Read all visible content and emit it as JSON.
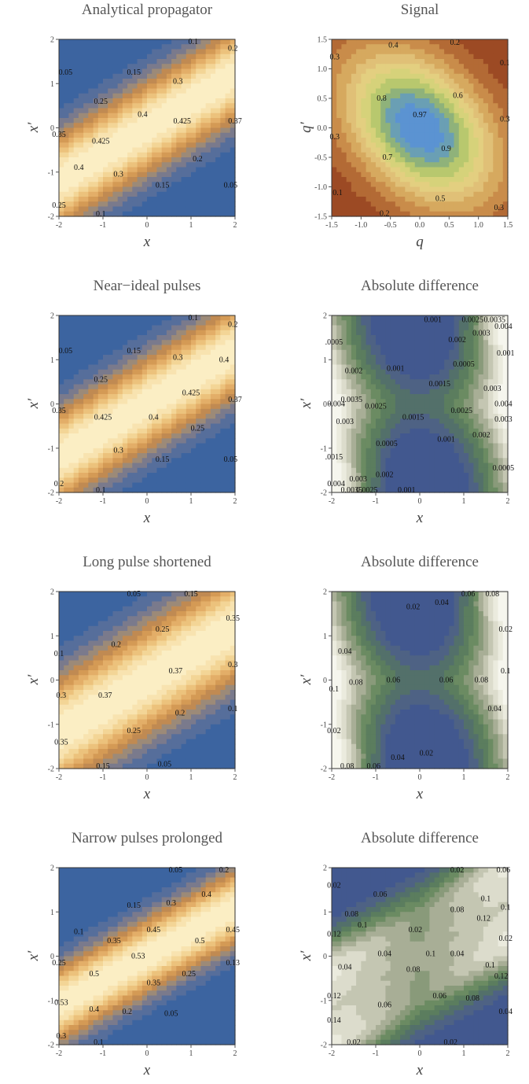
{
  "chart_data": [
    {
      "type": "contour",
      "palette": "warm",
      "title": "Analytical propagator",
      "xlabel": "x",
      "ylabel": "x′",
      "xlim": [
        -2,
        2
      ],
      "ylim": [
        -2,
        2
      ],
      "xticks": [
        "-2",
        "-1",
        "0",
        "1",
        "2"
      ],
      "yticks": [
        "-2",
        "-1",
        "0",
        "1",
        "2"
      ],
      "contour_labels": [
        {
          "text": "0.1",
          "x": 1.05,
          "y": 1.95
        },
        {
          "text": "0.2",
          "x": 1.95,
          "y": 1.8
        },
        {
          "text": "0.05",
          "x": -1.85,
          "y": 1.25
        },
        {
          "text": "0.15",
          "x": -0.3,
          "y": 1.25
        },
        {
          "text": "0.3",
          "x": 0.7,
          "y": 1.05
        },
        {
          "text": "0.25",
          "x": -1.05,
          "y": 0.6
        },
        {
          "text": "0.4",
          "x": -0.1,
          "y": 0.3
        },
        {
          "text": "0.425",
          "x": 0.8,
          "y": 0.15
        },
        {
          "text": "0.35",
          "x": -2.0,
          "y": -0.15
        },
        {
          "text": "0.425",
          "x": -1.05,
          "y": -0.3
        },
        {
          "text": "0.37",
          "x": 2.0,
          "y": 0.15
        },
        {
          "text": "0.4",
          "x": -1.55,
          "y": -0.9
        },
        {
          "text": "0.3",
          "x": -0.65,
          "y": -1.05
        },
        {
          "text": "0.2",
          "x": 1.15,
          "y": -0.7
        },
        {
          "text": "0.15",
          "x": 0.35,
          "y": -1.3
        },
        {
          "text": "0.05",
          "x": 1.9,
          "y": -1.3
        },
        {
          "text": "0.25",
          "x": -2.0,
          "y": -1.75
        },
        {
          "text": "0.1",
          "x": -1.05,
          "y": -1.95
        }
      ]
    },
    {
      "type": "contour",
      "palette": "signal",
      "title": "Signal",
      "xlabel": "q",
      "ylabel": "q′",
      "xlim": [
        -1.5,
        1.5
      ],
      "ylim": [
        -1.5,
        1.5
      ],
      "xticks": [
        "-1.5",
        "-1.0",
        "-0.5",
        "0.0",
        "0.5",
        "1.0",
        "1.5"
      ],
      "yticks": [
        "-1.5",
        "-1.0",
        "-0.5",
        "0.0",
        "0.5",
        "1.0",
        "1.5"
      ],
      "contour_labels": [
        {
          "text": "0.4",
          "x": -0.45,
          "y": 1.4
        },
        {
          "text": "0.2",
          "x": 0.6,
          "y": 1.45
        },
        {
          "text": "0.3",
          "x": -1.45,
          "y": 1.2
        },
        {
          "text": "0.1",
          "x": 1.45,
          "y": 1.1
        },
        {
          "text": "0.8",
          "x": -0.65,
          "y": 0.5
        },
        {
          "text": "0.6",
          "x": 0.65,
          "y": 0.55
        },
        {
          "text": "0.97",
          "x": 0.0,
          "y": 0.22
        },
        {
          "text": "0.3",
          "x": 1.45,
          "y": 0.15
        },
        {
          "text": "0.3",
          "x": -1.45,
          "y": -0.15
        },
        {
          "text": "0.9",
          "x": 0.45,
          "y": -0.35
        },
        {
          "text": "0.7",
          "x": -0.55,
          "y": -0.5
        },
        {
          "text": "0.5",
          "x": 0.35,
          "y": -1.2
        },
        {
          "text": "0.1",
          "x": -1.4,
          "y": -1.1
        },
        {
          "text": "0.2",
          "x": -0.6,
          "y": -1.45
        },
        {
          "text": "0.3",
          "x": 1.35,
          "y": -1.35
        }
      ]
    },
    {
      "type": "contour",
      "palette": "warm",
      "title": "Near−ideal pulses",
      "xlabel": "x",
      "ylabel": "x′",
      "xlim": [
        -2,
        2
      ],
      "ylim": [
        -2,
        2
      ],
      "xticks": [
        "-2",
        "-1",
        "0",
        "1",
        "2"
      ],
      "yticks": [
        "-2",
        "-1",
        "0",
        "1",
        "2"
      ],
      "contour_labels": [
        {
          "text": "0.1",
          "x": 1.05,
          "y": 1.95
        },
        {
          "text": "0.2",
          "x": 1.95,
          "y": 1.8
        },
        {
          "text": "0.05",
          "x": -1.85,
          "y": 1.2
        },
        {
          "text": "0.15",
          "x": -0.3,
          "y": 1.2
        },
        {
          "text": "0.3",
          "x": 0.7,
          "y": 1.05
        },
        {
          "text": "0.4",
          "x": 1.75,
          "y": 1.0
        },
        {
          "text": "0.25",
          "x": -1.05,
          "y": 0.55
        },
        {
          "text": "0.425",
          "x": 1.0,
          "y": 0.25
        },
        {
          "text": "0.35",
          "x": -2.0,
          "y": -0.15
        },
        {
          "text": "0.425",
          "x": -1.0,
          "y": -0.3
        },
        {
          "text": "0.37",
          "x": 2.0,
          "y": 0.1
        },
        {
          "text": "0.4",
          "x": 0.15,
          "y": -0.3
        },
        {
          "text": "0.25",
          "x": 1.15,
          "y": -0.55
        },
        {
          "text": "0.3",
          "x": -0.65,
          "y": -1.05
        },
        {
          "text": "0.15",
          "x": 0.35,
          "y": -1.25
        },
        {
          "text": "0.05",
          "x": 1.9,
          "y": -1.25
        },
        {
          "text": "0.2",
          "x": -2.0,
          "y": -1.8
        },
        {
          "text": "0.1",
          "x": -1.05,
          "y": -1.95
        }
      ]
    },
    {
      "type": "contour",
      "palette": "green",
      "title": "Absolute difference",
      "xlabel": "x",
      "ylabel": "x′",
      "xlim": [
        -2,
        2
      ],
      "ylim": [
        -2,
        2
      ],
      "xticks": [
        "-2",
        "-1",
        "0",
        "1",
        "2"
      ],
      "yticks": [
        "-2",
        "-1",
        "0",
        "1",
        "2"
      ],
      "contour_labels": [
        {
          "text": "0.001",
          "x": 0.3,
          "y": 1.9
        },
        {
          "text": "0.0025",
          "x": 1.2,
          "y": 1.9
        },
        {
          "text": "0.0035",
          "x": 1.7,
          "y": 1.9
        },
        {
          "text": "0.004",
          "x": 1.9,
          "y": 1.75
        },
        {
          "text": "0.003",
          "x": 1.4,
          "y": 1.6
        },
        {
          "text": "0.002",
          "x": 0.85,
          "y": 1.45
        },
        {
          "text": ".0005",
          "x": -1.95,
          "y": 1.4
        },
        {
          "text": "0.001",
          "x": 1.95,
          "y": 1.15
        },
        {
          "text": "0.002",
          "x": -1.5,
          "y": 0.75
        },
        {
          "text": "0.001",
          "x": -0.55,
          "y": 0.8
        },
        {
          "text": "0.0005",
          "x": 1.0,
          "y": 0.9
        },
        {
          "text": "0.0015",
          "x": 0.45,
          "y": 0.45
        },
        {
          "text": "0.003",
          "x": 1.65,
          "y": 0.35
        },
        {
          "text": "0.0035",
          "x": -1.55,
          "y": 0.1
        },
        {
          "text": "0.004",
          "x": -1.9,
          "y": 0.0
        },
        {
          "text": "0.0025",
          "x": -1.0,
          "y": -0.05
        },
        {
          "text": "0.0025",
          "x": 0.95,
          "y": -0.15
        },
        {
          "text": "0.004",
          "x": 1.9,
          "y": 0.0
        },
        {
          "text": "0.003",
          "x": -1.7,
          "y": -0.4
        },
        {
          "text": "0.0015",
          "x": -0.15,
          "y": -0.3
        },
        {
          "text": "0.003",
          "x": 1.9,
          "y": -0.35
        },
        {
          "text": "0.002",
          "x": 1.4,
          "y": -0.7
        },
        {
          "text": "0.001",
          "x": 0.6,
          "y": -0.8
        },
        {
          "text": "0.0005",
          "x": -0.75,
          "y": -0.9
        },
        {
          "text": ".0015",
          "x": -1.95,
          "y": -1.2
        },
        {
          "text": "0.0005",
          "x": 1.9,
          "y": -1.45
        },
        {
          "text": "0.002",
          "x": -0.8,
          "y": -1.6
        },
        {
          "text": "0.003",
          "x": -1.4,
          "y": -1.7
        },
        {
          "text": "0.004",
          "x": -1.9,
          "y": -1.8
        },
        {
          "text": "0.0035",
          "x": -1.55,
          "y": -1.95
        },
        {
          "text": "0.0025",
          "x": -1.2,
          "y": -1.95
        },
        {
          "text": "0.001",
          "x": -0.3,
          "y": -1.95
        }
      ]
    },
    {
      "type": "contour",
      "palette": "warm",
      "title": "Long pulse shortened",
      "xlabel": "x",
      "ylabel": "x′",
      "xlim": [
        -2,
        2
      ],
      "ylim": [
        -2,
        2
      ],
      "xticks": [
        "-2",
        "-1",
        "0",
        "1",
        "2"
      ],
      "yticks": [
        "-2",
        "-1",
        "0",
        "1",
        "2"
      ],
      "contour_labels": [
        {
          "text": "0.05",
          "x": -0.3,
          "y": 1.95
        },
        {
          "text": "0.15",
          "x": 1.0,
          "y": 1.95
        },
        {
          "text": "0.35",
          "x": 1.95,
          "y": 1.4
        },
        {
          "text": "0.25",
          "x": 0.35,
          "y": 1.15
        },
        {
          "text": "0.2",
          "x": -0.7,
          "y": 0.8
        },
        {
          "text": "0.1",
          "x": -2.0,
          "y": 0.6
        },
        {
          "text": "0.37",
          "x": 0.65,
          "y": 0.2
        },
        {
          "text": "0.3",
          "x": 1.95,
          "y": 0.35
        },
        {
          "text": "0.3",
          "x": -1.95,
          "y": -0.35
        },
        {
          "text": "0.37",
          "x": -0.95,
          "y": -0.35
        },
        {
          "text": "0.2",
          "x": 0.75,
          "y": -0.75
        },
        {
          "text": "0.1",
          "x": 1.95,
          "y": -0.65
        },
        {
          "text": "0.25",
          "x": -0.3,
          "y": -1.15
        },
        {
          "text": "0.35",
          "x": -1.95,
          "y": -1.4
        },
        {
          "text": "0.05",
          "x": 0.4,
          "y": -1.9
        },
        {
          "text": "0.15",
          "x": -1.0,
          "y": -1.95
        }
      ]
    },
    {
      "type": "contour",
      "palette": "green",
      "title": "Absolute difference",
      "xlabel": "x",
      "ylabel": "x′",
      "xlim": [
        -2,
        2
      ],
      "ylim": [
        -2,
        2
      ],
      "xticks": [
        "-2",
        "-1",
        "0",
        "1",
        "2"
      ],
      "yticks": [
        "-2",
        "-1",
        "0",
        "1",
        "2"
      ],
      "contour_labels": [
        {
          "text": "0.02",
          "x": -0.15,
          "y": 1.65
        },
        {
          "text": "0.04",
          "x": 0.5,
          "y": 1.75
        },
        {
          "text": "0.06",
          "x": 1.1,
          "y": 1.95
        },
        {
          "text": "0.08",
          "x": 1.65,
          "y": 1.95
        },
        {
          "text": "0.02",
          "x": 1.95,
          "y": 1.15
        },
        {
          "text": "0.04",
          "x": -1.7,
          "y": 0.65
        },
        {
          "text": "0.1",
          "x": 1.95,
          "y": 0.2
        },
        {
          "text": "0.08",
          "x": -1.45,
          "y": -0.05
        },
        {
          "text": "0.06",
          "x": -0.6,
          "y": 0.0
        },
        {
          "text": "0.06",
          "x": 0.6,
          "y": 0.0
        },
        {
          "text": "0.08",
          "x": 1.4,
          "y": 0.0
        },
        {
          "text": "0.1",
          "x": -1.95,
          "y": -0.2
        },
        {
          "text": "0.04",
          "x": 1.7,
          "y": -0.65
        },
        {
          "text": "0.02",
          "x": -1.95,
          "y": -1.15
        },
        {
          "text": "0.02",
          "x": 0.15,
          "y": -1.65
        },
        {
          "text": "0.04",
          "x": -0.5,
          "y": -1.75
        },
        {
          "text": "0.08",
          "x": -1.65,
          "y": -1.95
        },
        {
          "text": "0.06",
          "x": -1.05,
          "y": -1.95
        }
      ]
    },
    {
      "type": "contour",
      "palette": "warm",
      "title": "Narrow pulses prolonged",
      "xlabel": "x",
      "ylabel": "x′",
      "xlim": [
        -2,
        2
      ],
      "ylim": [
        -2,
        2
      ],
      "xticks": [
        "-2",
        "-1",
        "0",
        "1",
        "2"
      ],
      "yticks": [
        "-2",
        "-1",
        "0",
        "1",
        "2"
      ],
      "contour_labels": [
        {
          "text": "0.05",
          "x": 0.65,
          "y": 1.95
        },
        {
          "text": "0.2",
          "x": 1.75,
          "y": 1.95
        },
        {
          "text": "0.4",
          "x": 1.35,
          "y": 1.4
        },
        {
          "text": "0.15",
          "x": -0.3,
          "y": 1.15
        },
        {
          "text": "0.3",
          "x": 0.55,
          "y": 1.2
        },
        {
          "text": "0.45",
          "x": 1.95,
          "y": 0.6
        },
        {
          "text": "0.1",
          "x": -1.55,
          "y": 0.55
        },
        {
          "text": "0.45",
          "x": 0.15,
          "y": 0.6
        },
        {
          "text": "0.35",
          "x": -0.75,
          "y": 0.35
        },
        {
          "text": "0.5",
          "x": 1.2,
          "y": 0.35
        },
        {
          "text": "0.53",
          "x": -0.2,
          "y": 0.0
        },
        {
          "text": "0.25",
          "x": -2.0,
          "y": -0.15
        },
        {
          "text": "0.5",
          "x": -1.2,
          "y": -0.4
        },
        {
          "text": "0.13",
          "x": 1.95,
          "y": -0.15
        },
        {
          "text": "0.35",
          "x": 0.15,
          "y": -0.6
        },
        {
          "text": "0.25",
          "x": 0.95,
          "y": -0.4
        },
        {
          "text": "0.53",
          "x": -1.95,
          "y": -1.05
        },
        {
          "text": "0.4",
          "x": -1.2,
          "y": -1.2
        },
        {
          "text": "0.2",
          "x": -0.45,
          "y": -1.25
        },
        {
          "text": "0.05",
          "x": 0.55,
          "y": -1.3
        },
        {
          "text": "0.3",
          "x": -1.95,
          "y": -1.8
        },
        {
          "text": "0.1",
          "x": -1.1,
          "y": -1.95
        }
      ]
    },
    {
      "type": "contour",
      "palette": "green",
      "title": "Absolute difference",
      "xlabel": "x",
      "ylabel": "x′",
      "xlim": [
        -2,
        2
      ],
      "ylim": [
        -2,
        2
      ],
      "xticks": [
        "-2",
        "-1",
        "0",
        "1",
        "2"
      ],
      "yticks": [
        "-2",
        "-1",
        "0",
        "1",
        "2"
      ],
      "contour_labels": [
        {
          "text": "0.02",
          "x": 0.85,
          "y": 1.95
        },
        {
          "text": "0.06",
          "x": 1.9,
          "y": 1.95
        },
        {
          "text": "0.02",
          "x": -1.95,
          "y": 1.6
        },
        {
          "text": "0.06",
          "x": -0.9,
          "y": 1.4
        },
        {
          "text": "0.1",
          "x": 1.5,
          "y": 1.3
        },
        {
          "text": "0.1",
          "x": 1.95,
          "y": 1.1
        },
        {
          "text": "0.08",
          "x": -1.55,
          "y": 0.95
        },
        {
          "text": "0.08",
          "x": 0.85,
          "y": 1.05
        },
        {
          "text": "0.1",
          "x": -1.3,
          "y": 0.7
        },
        {
          "text": "0.12",
          "x": 1.45,
          "y": 0.85
        },
        {
          "text": "0.12",
          "x": -1.95,
          "y": 0.5
        },
        {
          "text": "0.02",
          "x": -0.1,
          "y": 0.6
        },
        {
          "text": "0.02",
          "x": 1.95,
          "y": 0.4
        },
        {
          "text": "0.04",
          "x": -1.7,
          "y": -0.25
        },
        {
          "text": "0.04",
          "x": -0.8,
          "y": 0.05
        },
        {
          "text": "0.1",
          "x": 0.25,
          "y": 0.05
        },
        {
          "text": "0.04",
          "x": 0.85,
          "y": 0.05
        },
        {
          "text": "0.1",
          "x": 1.6,
          "y": -0.2
        },
        {
          "text": "0.08",
          "x": -0.15,
          "y": -0.3
        },
        {
          "text": "0.12",
          "x": 1.85,
          "y": -0.45
        },
        {
          "text": "0.12",
          "x": -1.95,
          "y": -0.9
        },
        {
          "text": "0.06",
          "x": -0.8,
          "y": -1.1
        },
        {
          "text": "0.06",
          "x": 0.45,
          "y": -0.9
        },
        {
          "text": "0.08",
          "x": 1.2,
          "y": -0.95
        },
        {
          "text": "0.14",
          "x": -1.95,
          "y": -1.45
        },
        {
          "text": "0.04",
          "x": 1.95,
          "y": -1.25
        },
        {
          "text": "0.02",
          "x": -1.5,
          "y": -1.95
        },
        {
          "text": "0.02",
          "x": 0.7,
          "y": -1.95
        }
      ]
    }
  ]
}
